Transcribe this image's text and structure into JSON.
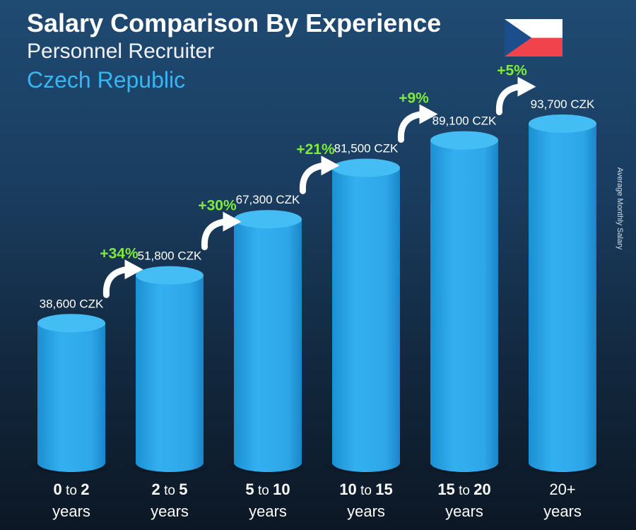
{
  "header": {
    "title": "Salary Comparison By Experience",
    "subtitle": "Personnel Recruiter",
    "country": "Czech Republic",
    "side_label": "Average Monthly Salary"
  },
  "flag": {
    "icon": "czech-flag-icon",
    "colors": [
      "#ffffff",
      "#d7141a",
      "#11457e"
    ]
  },
  "colors": {
    "bar": "#2ea8ea",
    "bar_top": "#44bdf4",
    "pct": "#7dea3c",
    "value": "#ffffff"
  },
  "chart_data": {
    "type": "bar",
    "categories": [
      {
        "from": "0",
        "to": "2",
        "unit": "years",
        "joiner": "to"
      },
      {
        "from": "2",
        "to": "5",
        "unit": "years",
        "joiner": "to"
      },
      {
        "from": "5",
        "to": "10",
        "unit": "years",
        "joiner": "to"
      },
      {
        "from": "10",
        "to": "15",
        "unit": "years",
        "joiner": "to"
      },
      {
        "from": "15",
        "to": "20",
        "unit": "years",
        "joiner": "to"
      },
      {
        "from": "20+",
        "to": "",
        "unit": "years",
        "joiner": ""
      }
    ],
    "values": [
      38600,
      51800,
      67300,
      81500,
      89100,
      93700
    ],
    "value_labels": [
      "38,600 CZK",
      "51,800 CZK",
      "67,300 CZK",
      "81,500 CZK",
      "89,100 CZK",
      "93,700 CZK"
    ],
    "increases": [
      "+34%",
      "+30%",
      "+21%",
      "+9%",
      "+5%"
    ],
    "currency": "CZK",
    "ylim": [
      0,
      100000
    ]
  }
}
